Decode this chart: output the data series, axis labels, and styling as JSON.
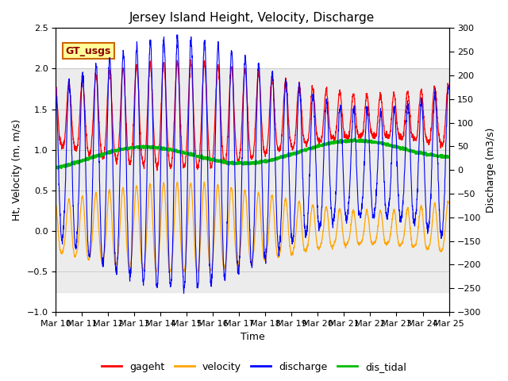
{
  "title": "Jersey Island Height, Velocity, Discharge",
  "xlabel": "Time",
  "ylabel_left": "Ht, Velocity (m, m/s)",
  "ylabel_right": "Discharge (m3/s)",
  "ylim_left": [
    -1.0,
    2.5
  ],
  "ylim_right": [
    -300,
    300
  ],
  "x_tick_days": [
    10,
    11,
    12,
    13,
    14,
    15,
    16,
    17,
    18,
    19,
    20,
    21,
    22,
    23,
    24,
    25
  ],
  "x_tick_labels": [
    "Mar 10",
    "Mar 11",
    "Mar 12",
    "Mar 13",
    "Mar 14",
    "Mar 15",
    "Mar 16",
    "Mar 17",
    "Mar 18",
    "Mar 19",
    "Mar 20",
    "Mar 21",
    "Mar 22",
    "Mar 23",
    "Mar 24",
    "Mar 25"
  ],
  "colors": {
    "gageht": "#ff0000",
    "velocity": "#ffa500",
    "discharge": "#0000ff",
    "dis_tidal": "#00bb00"
  },
  "legend_labels": [
    "gageht",
    "velocity",
    "discharge",
    "dis_tidal"
  ],
  "annotation_text": "GT_usgs",
  "annotation_bg": "#ffff99",
  "annotation_border": "#cc6600",
  "bg_band_ymin": -0.75,
  "bg_band_ymax": 2.0,
  "bg_band_color": "#e0e0e0",
  "grid_color": "#cccccc",
  "title_fontsize": 11,
  "axis_fontsize": 9,
  "tick_fontsize": 8,
  "figwidth": 6.4,
  "figheight": 4.8,
  "dpi": 100
}
